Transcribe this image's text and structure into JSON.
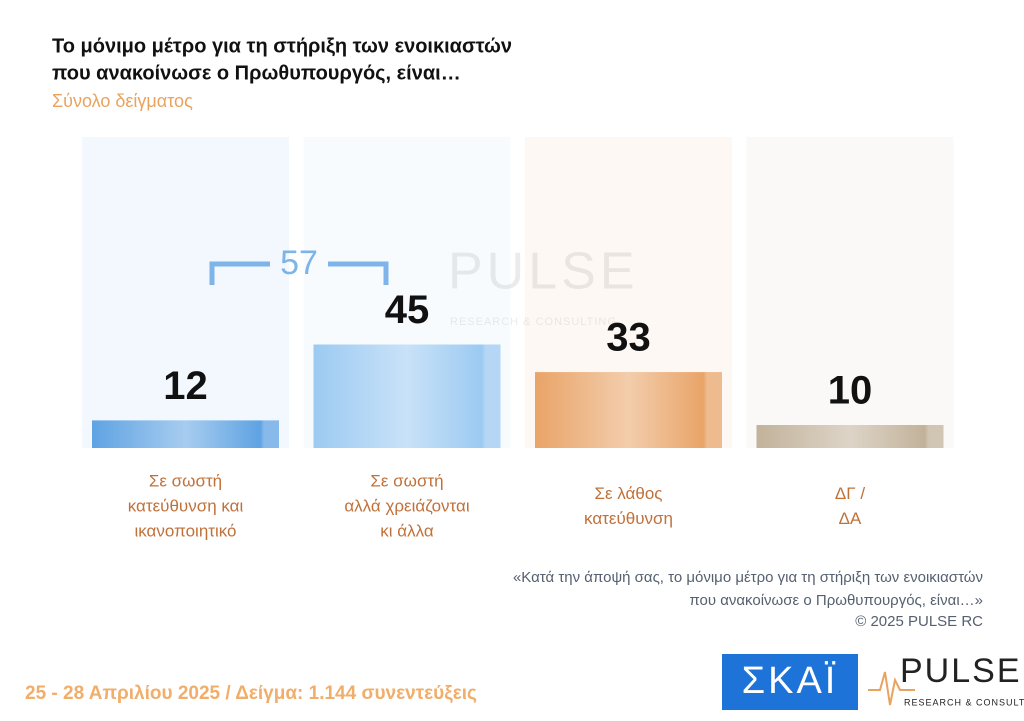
{
  "chart_data": {
    "type": "bar",
    "title": [
      "Το μόνιμο μέτρο για τη στήριξη των ενοικιαστών",
      "που ανακοίνωσε ο Πρωθυπουργός, είναι…"
    ],
    "subtitle": "Σύνολο δείγματος",
    "categories": [
      [
        "Σε σωστή",
        "κατεύθυνση και",
        "ικανοποιητικό"
      ],
      [
        "Σε σωστή",
        "αλλά χρειάζονται",
        "κι άλλα"
      ],
      [
        "Σε λάθος",
        "κατεύθυνση"
      ],
      [
        "ΔΓ /",
        "ΔΑ"
      ]
    ],
    "values": [
      12,
      45,
      33,
      10
    ],
    "colors": [
      "#5fa3e3",
      "#9ccaf2",
      "#e9a468",
      "#c2b29a"
    ],
    "ylim": [
      0,
      100
    ],
    "bracket": 57,
    "note": [
      "«Κατά την άποψή σας, το μόνιμο μέτρο για τη στήριξη των ενοικιαστών",
      "που ανακοίνωσε ο Πρωθυπουργός, είναι…»",
      "©  2025  PULSE RC"
    ],
    "footer": "25 - 28 Απριλίου 2025  /  Δείγμα:  1.144 συνεντεύξεις",
    "logos": {
      "skai": "ΣΚΑΪ",
      "pulse": "PULSE",
      "pulse_sub": "RESEARCH & CONSULTING"
    },
    "watermark": {
      "name": "PULSE",
      "sub": "RESEARCH & CONSULTING"
    }
  }
}
